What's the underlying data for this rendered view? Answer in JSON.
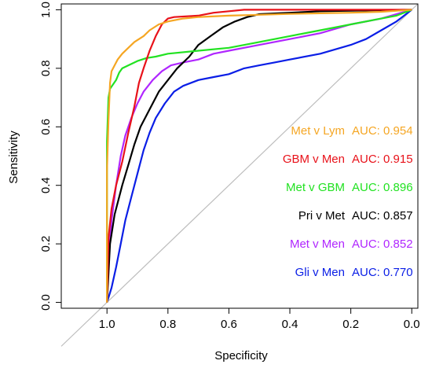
{
  "chart_data": {
    "type": "line",
    "title": "",
    "xlabel": "Specificity",
    "ylabel": "Sensitivity",
    "xlim": [
      1.15,
      -0.02
    ],
    "ylim": [
      -0.02,
      1.02
    ],
    "x_reversed": true,
    "x_ticks": [
      1.0,
      0.8,
      0.6,
      0.4,
      0.2,
      0.0
    ],
    "x_tick_labels": [
      "1.0",
      "0.8",
      "0.6",
      "0.4",
      "0.2",
      "0.0"
    ],
    "y_ticks": [
      0.0,
      0.2,
      0.4,
      0.6,
      0.8,
      1.0
    ],
    "y_tick_labels": [
      "0.0",
      "0.2",
      "0.4",
      "0.6",
      "0.8",
      "1.0"
    ],
    "grid": false,
    "legend_position": "bottom-right",
    "diagonal_reference_line": true,
    "series": [
      {
        "name": "Met v Lym",
        "auc_label": "AUC: 0.954",
        "color": "#f5a623",
        "points": [
          [
            1.0,
            0.0
          ],
          [
            1.0,
            0.45
          ],
          [
            0.995,
            0.62
          ],
          [
            0.99,
            0.75
          ],
          [
            0.985,
            0.79
          ],
          [
            0.975,
            0.81
          ],
          [
            0.965,
            0.83
          ],
          [
            0.95,
            0.85
          ],
          [
            0.93,
            0.87
          ],
          [
            0.91,
            0.89
          ],
          [
            0.88,
            0.91
          ],
          [
            0.86,
            0.93
          ],
          [
            0.83,
            0.95
          ],
          [
            0.8,
            0.96
          ],
          [
            0.75,
            0.97
          ],
          [
            0.7,
            0.975
          ],
          [
            0.6,
            0.98
          ],
          [
            0.5,
            0.983
          ],
          [
            0.4,
            0.986
          ],
          [
            0.3,
            0.988
          ],
          [
            0.2,
            0.99
          ],
          [
            0.1,
            0.993
          ],
          [
            0.0,
            1.0
          ]
        ]
      },
      {
        "name": "GBM v Men",
        "auc_label": "AUC: 0.915",
        "color": "#e8121a",
        "points": [
          [
            1.0,
            0.0
          ],
          [
            0.995,
            0.22
          ],
          [
            0.985,
            0.32
          ],
          [
            0.97,
            0.4
          ],
          [
            0.95,
            0.48
          ],
          [
            0.93,
            0.58
          ],
          [
            0.91,
            0.67
          ],
          [
            0.895,
            0.75
          ],
          [
            0.88,
            0.8
          ],
          [
            0.86,
            0.86
          ],
          [
            0.84,
            0.91
          ],
          [
            0.82,
            0.95
          ],
          [
            0.8,
            0.97
          ],
          [
            0.78,
            0.975
          ],
          [
            0.7,
            0.98
          ],
          [
            0.65,
            0.99
          ],
          [
            0.6,
            0.995
          ],
          [
            0.55,
            1.0
          ],
          [
            0.0,
            1.0
          ]
        ]
      },
      {
        "name": "Met v GBM",
        "auc_label": "AUC: 0.896",
        "color": "#22e222",
        "points": [
          [
            1.0,
            0.0
          ],
          [
            1.0,
            0.55
          ],
          [
            0.995,
            0.7
          ],
          [
            0.99,
            0.73
          ],
          [
            0.98,
            0.745
          ],
          [
            0.97,
            0.76
          ],
          [
            0.96,
            0.785
          ],
          [
            0.95,
            0.8
          ],
          [
            0.93,
            0.81
          ],
          [
            0.9,
            0.825
          ],
          [
            0.87,
            0.835
          ],
          [
            0.84,
            0.84
          ],
          [
            0.8,
            0.85
          ],
          [
            0.7,
            0.86
          ],
          [
            0.6,
            0.87
          ],
          [
            0.5,
            0.89
          ],
          [
            0.4,
            0.91
          ],
          [
            0.3,
            0.93
          ],
          [
            0.2,
            0.95
          ],
          [
            0.1,
            0.97
          ],
          [
            0.05,
            0.98
          ],
          [
            0.0,
            1.0
          ]
        ]
      },
      {
        "name": "Pri v Met",
        "auc_label": "AUC: 0.857",
        "color": "#000000",
        "points": [
          [
            1.0,
            0.0
          ],
          [
            0.99,
            0.2
          ],
          [
            0.975,
            0.3
          ],
          [
            0.95,
            0.4
          ],
          [
            0.93,
            0.47
          ],
          [
            0.91,
            0.54
          ],
          [
            0.89,
            0.6
          ],
          [
            0.86,
            0.66
          ],
          [
            0.83,
            0.72
          ],
          [
            0.8,
            0.76
          ],
          [
            0.77,
            0.8
          ],
          [
            0.73,
            0.84
          ],
          [
            0.7,
            0.88
          ],
          [
            0.66,
            0.91
          ],
          [
            0.62,
            0.94
          ],
          [
            0.58,
            0.96
          ],
          [
            0.54,
            0.975
          ],
          [
            0.5,
            0.985
          ],
          [
            0.4,
            0.99
          ],
          [
            0.3,
            0.995
          ],
          [
            0.2,
            0.997
          ],
          [
            0.0,
            1.0
          ]
        ]
      },
      {
        "name": "Met v Men",
        "auc_label": "AUC: 0.852",
        "color": "#b026ff",
        "points": [
          [
            1.0,
            0.0
          ],
          [
            0.995,
            0.15
          ],
          [
            0.985,
            0.28
          ],
          [
            0.97,
            0.4
          ],
          [
            0.955,
            0.5
          ],
          [
            0.94,
            0.57
          ],
          [
            0.92,
            0.63
          ],
          [
            0.9,
            0.68
          ],
          [
            0.88,
            0.72
          ],
          [
            0.85,
            0.76
          ],
          [
            0.82,
            0.79
          ],
          [
            0.79,
            0.81
          ],
          [
            0.75,
            0.82
          ],
          [
            0.7,
            0.83
          ],
          [
            0.65,
            0.85
          ],
          [
            0.6,
            0.86
          ],
          [
            0.5,
            0.88
          ],
          [
            0.4,
            0.9
          ],
          [
            0.3,
            0.92
          ],
          [
            0.2,
            0.95
          ],
          [
            0.1,
            0.97
          ],
          [
            0.0,
            1.0
          ]
        ]
      },
      {
        "name": "Gli v Men",
        "auc_label": "AUC: 0.770",
        "color": "#0a1ee6",
        "points": [
          [
            1.0,
            0.0
          ],
          [
            0.985,
            0.05
          ],
          [
            0.97,
            0.12
          ],
          [
            0.955,
            0.2
          ],
          [
            0.94,
            0.28
          ],
          [
            0.92,
            0.36
          ],
          [
            0.9,
            0.44
          ],
          [
            0.88,
            0.52
          ],
          [
            0.86,
            0.58
          ],
          [
            0.84,
            0.63
          ],
          [
            0.81,
            0.68
          ],
          [
            0.78,
            0.72
          ],
          [
            0.75,
            0.74
          ],
          [
            0.7,
            0.76
          ],
          [
            0.65,
            0.77
          ],
          [
            0.6,
            0.78
          ],
          [
            0.55,
            0.8
          ],
          [
            0.5,
            0.81
          ],
          [
            0.45,
            0.82
          ],
          [
            0.4,
            0.83
          ],
          [
            0.3,
            0.85
          ],
          [
            0.2,
            0.88
          ],
          [
            0.15,
            0.9
          ],
          [
            0.1,
            0.93
          ],
          [
            0.05,
            0.96
          ],
          [
            0.0,
            1.0
          ]
        ]
      }
    ]
  }
}
